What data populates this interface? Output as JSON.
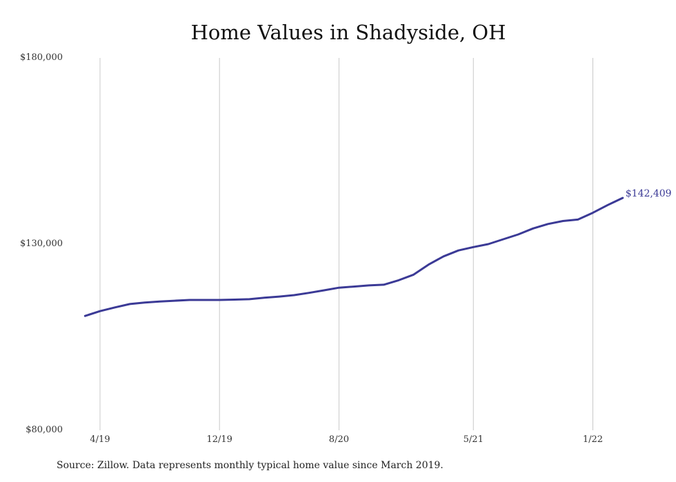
{
  "source_note": "Source: Zillow. Data represents monthly typical home value since March 2019.",
  "chart_data": {
    "type": "line",
    "title": "Home Values in Shadyside, OH",
    "xlabel": "",
    "ylabel": "",
    "ylim": [
      80000,
      180000
    ],
    "y_ticks": [
      "$180,000",
      "$130,000",
      "$80,000"
    ],
    "x_ticks": [
      "4/19",
      "12/19",
      "8/20",
      "5/21",
      "1/22"
    ],
    "grid": "vertical",
    "line_color": "#3b3a96",
    "end_label": "$142,409",
    "series": [
      {
        "x": [
          "2019-03",
          "2019-04",
          "2019-05",
          "2019-06",
          "2019-07",
          "2019-08",
          "2019-09",
          "2019-10",
          "2019-11",
          "2019-12",
          "2020-01",
          "2020-02",
          "2020-03",
          "2020-04",
          "2020-05",
          "2020-06",
          "2020-07",
          "2020-08",
          "2020-09",
          "2020-10",
          "2020-11",
          "2020-12",
          "2021-01",
          "2021-02",
          "2021-03",
          "2021-04",
          "2021-05",
          "2021-06",
          "2021-07",
          "2021-08",
          "2021-09",
          "2021-10",
          "2021-11",
          "2021-12",
          "2022-01",
          "2022-02",
          "2022-03"
        ],
        "values": [
          110700,
          112000,
          113000,
          113900,
          114300,
          114600,
          114800,
          115000,
          115000,
          115000,
          115100,
          115200,
          115600,
          115900,
          116300,
          116900,
          117600,
          118300,
          118600,
          118900,
          119100,
          120300,
          121800,
          124500,
          126700,
          128300,
          129200,
          130000,
          131300,
          132600,
          134200,
          135400,
          136200,
          136600,
          138400,
          140500,
          142409
        ]
      }
    ]
  }
}
